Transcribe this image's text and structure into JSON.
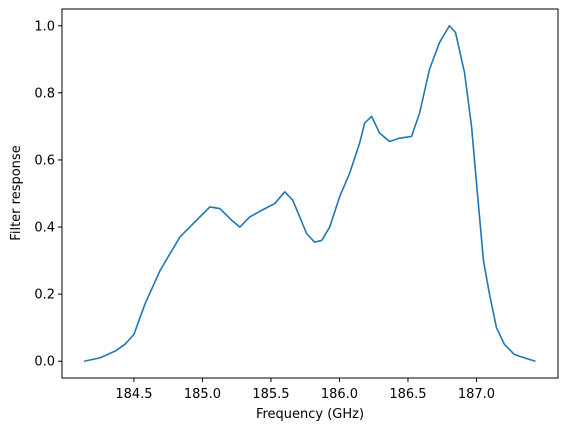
{
  "chart_data": {
    "type": "line",
    "xlabel": "Frequency (GHz)",
    "ylabel": "Filter response",
    "x": [
      184.136,
      184.252,
      184.362,
      184.434,
      184.5,
      184.58,
      184.69,
      184.835,
      184.981,
      185.054,
      185.127,
      185.214,
      185.273,
      185.345,
      185.433,
      185.528,
      185.601,
      185.659,
      185.71,
      185.761,
      185.819,
      185.87,
      185.929,
      186.001,
      186.074,
      186.147,
      186.184,
      186.235,
      186.293,
      186.366,
      186.439,
      186.526,
      186.585,
      186.657,
      186.73,
      186.803,
      186.847,
      186.913,
      186.964,
      187.007,
      187.051,
      187.095,
      187.146,
      187.204,
      187.277,
      187.35,
      187.43
    ],
    "series": [
      {
        "color": "#1f77b4",
        "values": [
          0.0,
          0.01,
          0.03,
          0.05,
          0.08,
          0.17,
          0.27,
          0.37,
          0.43,
          0.46,
          0.455,
          0.42,
          0.4,
          0.43,
          0.45,
          0.47,
          0.505,
          0.48,
          0.43,
          0.38,
          0.355,
          0.36,
          0.4,
          0.49,
          0.56,
          0.65,
          0.71,
          0.73,
          0.68,
          0.655,
          0.665,
          0.67,
          0.74,
          0.87,
          0.95,
          1.0,
          0.98,
          0.86,
          0.7,
          0.5,
          0.3,
          0.2,
          0.1,
          0.05,
          0.02,
          0.01,
          0.0
        ]
      }
    ],
    "xlim": [
      183.975,
      187.595
    ],
    "xticks": [
      184.5,
      {
        "value": 185,
        "label": "185.0"
      },
      185.5,
      {
        "value": 186,
        "label": "186.0"
      },
      186.5,
      {
        "value": 187,
        "label": "187.0"
      }
    ],
    "ylim": [
      -0.05,
      1.05
    ],
    "yticks": [
      {
        "value": 0,
        "label": "0.0"
      },
      0.2,
      0.4,
      0.6,
      0.8,
      {
        "value": 1,
        "label": "1.0"
      }
    ],
    "grid": false
  }
}
